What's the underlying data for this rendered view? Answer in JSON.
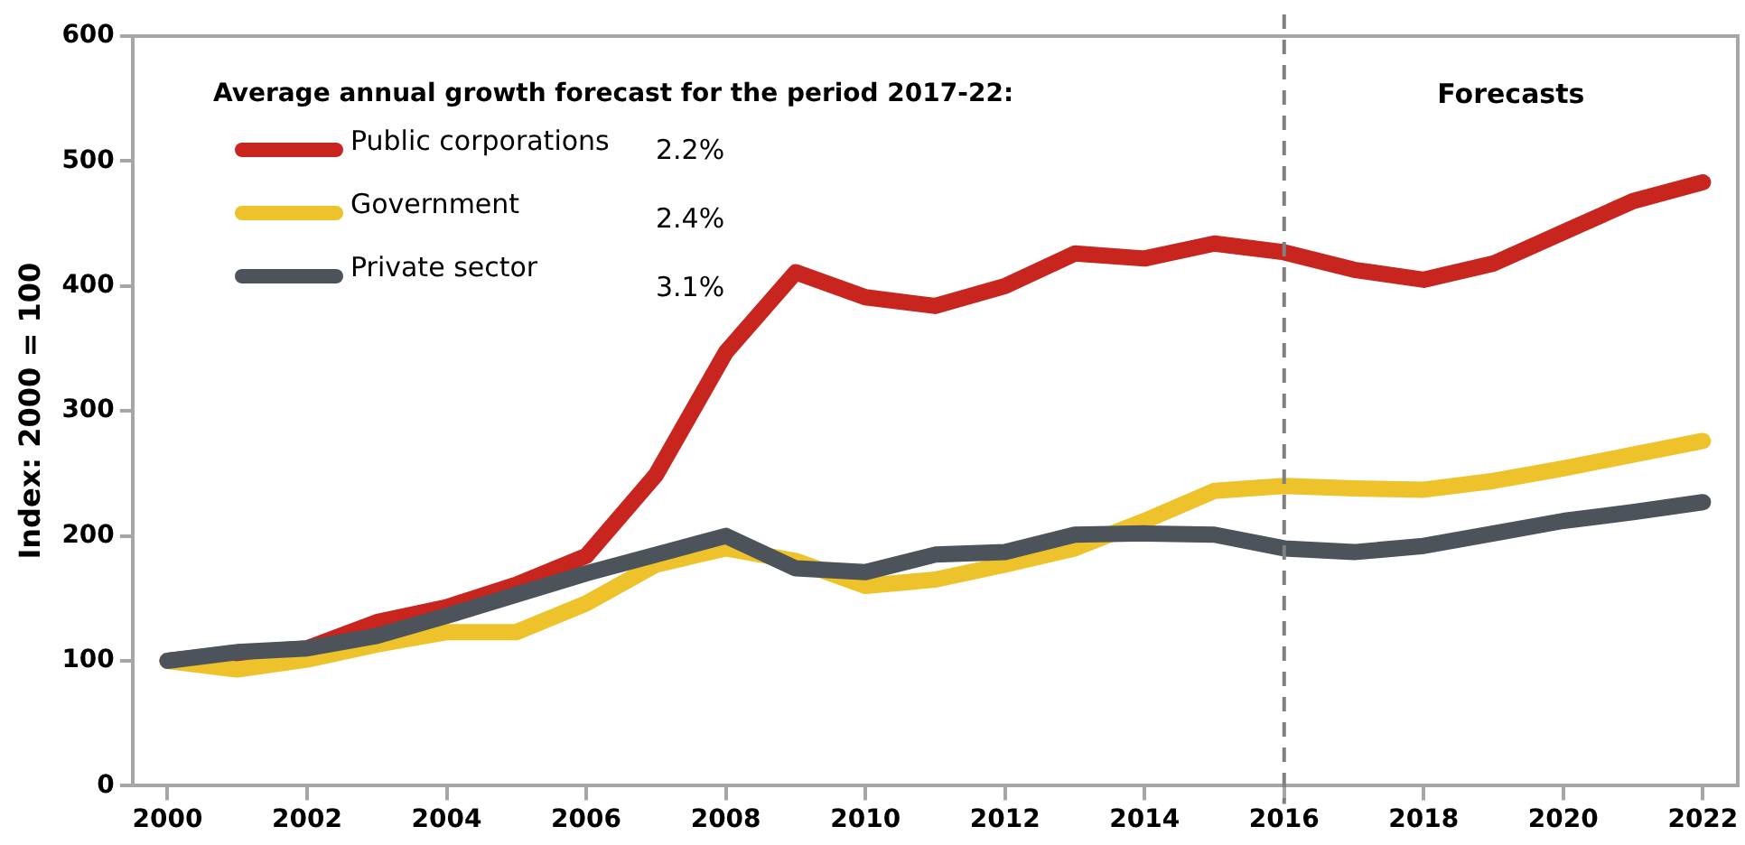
{
  "chart_data": {
    "type": "line",
    "ylabel": "Index: 2000 = 100",
    "legend_title": "Average annual growth forecast for the period 2017-22:",
    "legend": "top left",
    "grid": false,
    "marker": "none",
    "line_style": "solid",
    "x": [
      2000,
      2001,
      2002,
      2003,
      2004,
      2005,
      2006,
      2007,
      2008,
      2009,
      2010,
      2011,
      2012,
      2013,
      2014,
      2015,
      2016,
      2017,
      2018,
      2019,
      2020,
      2021,
      2022
    ],
    "xlim": [
      1999.5,
      2022.5
    ],
    "xticks": [
      2000,
      2002,
      2004,
      2006,
      2008,
      2010,
      2012,
      2014,
      2016,
      2018,
      2020,
      2022
    ],
    "ylim": [
      0,
      600
    ],
    "yticks": [
      0,
      100,
      200,
      300,
      400,
      500,
      600
    ],
    "series": [
      {
        "name": "Public corporations",
        "color": "#c8251f",
        "values": [
          100,
          106,
          110,
          131,
          143,
          161,
          184,
          249,
          347,
          411,
          391,
          384,
          400,
          426,
          422,
          434,
          427,
          413,
          405,
          418,
          443,
          468,
          483
        ]
      },
      {
        "name": "Government",
        "color": "#eec22b",
        "values": [
          100,
          93,
          101,
          113,
          123,
          123,
          146,
          177,
          190,
          180,
          160,
          165,
          177,
          190,
          212,
          236,
          240,
          238,
          237,
          244,
          254,
          265,
          276
        ]
      },
      {
        "name": "Private sector",
        "color": "#4d535b",
        "values": [
          100,
          107,
          110,
          120,
          136,
          153,
          170,
          185,
          200,
          174,
          171,
          185,
          187,
          201,
          202,
          201,
          190,
          187,
          192,
          202,
          212,
          219,
          227
        ]
      }
    ],
    "annotations": [
      "2.2%",
      "2.4%",
      "3.1%",
      "Forecasts"
    ],
    "ref_lines": [
      {
        "axis": "x",
        "value": 2016,
        "color": "#808080",
        "line_style": "dashed"
      }
    ]
  }
}
